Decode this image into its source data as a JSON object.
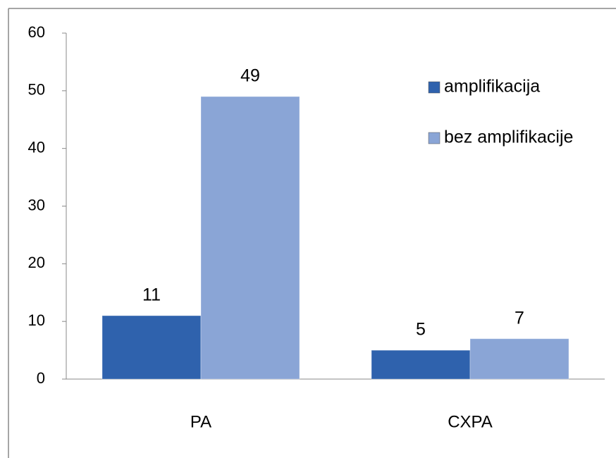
{
  "chart_data": {
    "type": "bar",
    "categories": [
      "PA",
      "CXPA"
    ],
    "series": [
      {
        "name": "amplifikacija",
        "color": "#2f62ad",
        "values": [
          11,
          5
        ]
      },
      {
        "name": "bez amplifikacije",
        "color": "#8aa5d6",
        "values": [
          49,
          7
        ]
      }
    ],
    "ylim": [
      0,
      60
    ],
    "yticks": [
      0,
      10,
      20,
      30,
      40,
      50,
      60
    ],
    "grid": false,
    "legend": "right"
  }
}
